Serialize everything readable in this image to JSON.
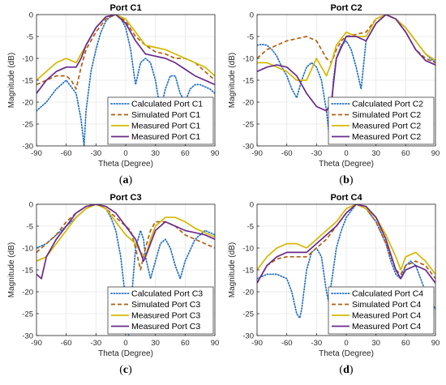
{
  "colors": {
    "calculated": "#1f6fc5",
    "simulated": "#b06010",
    "measured1": "#d4b800",
    "measured2": "#6a2a8c",
    "grid": "#e6e6e6",
    "axis": "#262626"
  },
  "chart_data": [
    {
      "type": "line",
      "label": "a",
      "title": "Port C1",
      "xlabel": "Theta (Degree)",
      "ylabel": "Magnitude (dB)",
      "xlim": [
        -90,
        90
      ],
      "ylim": [
        -30,
        0
      ],
      "xticks": [
        "-90",
        "-60",
        "-30",
        "0",
        "30",
        "60",
        "90"
      ],
      "yticks": [
        "0",
        "-5",
        "-10",
        "-15",
        "-20",
        "-25",
        "-30"
      ],
      "grid": true,
      "legend_position": "bottom-right",
      "series": [
        {
          "name": "Calculated Port C1",
          "style": "dotted",
          "color_key": "calculated",
          "x": [
            -90,
            -80,
            -70,
            -60,
            -50,
            -45,
            -42,
            -40,
            -35,
            -30,
            -25,
            -20,
            -15,
            -10,
            -5,
            0,
            5,
            8,
            10,
            12,
            15,
            20,
            25,
            30,
            35,
            40,
            45,
            50,
            55,
            60,
            65,
            70,
            75,
            80,
            85,
            90
          ],
          "y": [
            -22,
            -20,
            -17,
            -15,
            -18,
            -24,
            -30,
            -22,
            -13,
            -8,
            -4,
            -1.5,
            -0.3,
            0,
            -0.8,
            -3,
            -8,
            -13,
            -16,
            -14,
            -11,
            -10,
            -11,
            -15,
            -22,
            -17,
            -14,
            -14,
            -18,
            -20,
            -17,
            -16,
            -16,
            -16.5,
            -17,
            -18
          ]
        },
        {
          "name": "Simulated Port C1",
          "style": "dashed",
          "color_key": "simulated",
          "x": [
            -90,
            -80,
            -70,
            -60,
            -55,
            -50,
            -45,
            -40,
            -30,
            -20,
            -10,
            0,
            10,
            20,
            30,
            40,
            50,
            60,
            70,
            80,
            90
          ],
          "y": [
            -16,
            -15,
            -14,
            -14,
            -15,
            -17,
            -12,
            -8,
            -4,
            -1,
            0,
            -1.5,
            -5,
            -7,
            -8.5,
            -9,
            -10,
            -10,
            -11,
            -13,
            -15
          ]
        },
        {
          "name": "Measured Port C1",
          "style": "solid",
          "color_key": "measured1",
          "x": [
            -90,
            -80,
            -70,
            -60,
            -50,
            -40,
            -30,
            -20,
            -10,
            0,
            10,
            20,
            30,
            40,
            50,
            60,
            70,
            80,
            90
          ],
          "y": [
            -15,
            -13,
            -11,
            -10,
            -11,
            -7,
            -3,
            -0.5,
            0,
            -1,
            -4,
            -7,
            -7.5,
            -8,
            -9,
            -10,
            -11,
            -12,
            -14
          ]
        },
        {
          "name": "Measured Port C1",
          "style": "solid",
          "color_key": "measured2",
          "x": [
            -90,
            -80,
            -70,
            -60,
            -50,
            -45,
            -40,
            -30,
            -20,
            -10,
            0,
            10,
            20,
            30,
            40,
            50,
            60,
            70,
            80,
            90
          ],
          "y": [
            -18,
            -15,
            -13,
            -12,
            -12,
            -10,
            -7,
            -3,
            -0.5,
            0,
            -2,
            -6,
            -9,
            -9.5,
            -10,
            -11,
            -12.5,
            -14,
            -15,
            -16
          ]
        }
      ]
    },
    {
      "type": "line",
      "label": "b",
      "title": "Port C2",
      "xlabel": "Theta (Degree)",
      "ylabel": "Magnitude (dB)",
      "xlim": [
        -90,
        90
      ],
      "ylim": [
        -30,
        0
      ],
      "xticks": [
        "-90",
        "-60",
        "-30",
        "0",
        "30",
        "60",
        "90"
      ],
      "yticks": [
        "0",
        "-5",
        "-10",
        "-15",
        "-20",
        "-25",
        "-30"
      ],
      "grid": true,
      "legend_position": "bottom-right",
      "series": [
        {
          "name": "Calculated Port C2",
          "style": "dotted",
          "color_key": "calculated",
          "x": [
            -90,
            -85,
            -80,
            -75,
            -70,
            -65,
            -60,
            -55,
            -50,
            -45,
            -40,
            -35,
            -30,
            -25,
            -20,
            -17,
            -15,
            -13,
            -10,
            -5,
            0,
            5,
            10,
            15,
            20,
            30,
            40,
            50,
            60,
            70,
            80,
            90
          ],
          "y": [
            -7,
            -6.8,
            -7,
            -8,
            -9.5,
            -12,
            -14,
            -17,
            -19,
            -15,
            -12,
            -11,
            -12,
            -15,
            -22,
            -28,
            -22,
            -15,
            -10,
            -7,
            -6,
            -8,
            -12,
            -17,
            -6,
            -2,
            0,
            -1,
            -3,
            -6,
            -9,
            -11
          ]
        },
        {
          "name": "Simulated Port C2",
          "style": "dashed",
          "color_key": "simulated",
          "x": [
            -90,
            -80,
            -70,
            -60,
            -50,
            -40,
            -30,
            -20,
            -15,
            -10,
            -5,
            0,
            10,
            20,
            30,
            40,
            50,
            60,
            70,
            80,
            90
          ],
          "y": [
            -10,
            -8,
            -7,
            -6,
            -5.5,
            -5,
            -6,
            -10,
            -11,
            -8,
            -6,
            -5,
            -4.5,
            -4,
            -1,
            0,
            -1,
            -4,
            -8,
            -10,
            -11
          ]
        },
        {
          "name": "Measured Port C2",
          "style": "solid",
          "color_key": "measured1",
          "x": [
            -90,
            -80,
            -70,
            -60,
            -50,
            -40,
            -30,
            -20,
            -15,
            -10,
            0,
            10,
            20,
            30,
            40,
            50,
            60,
            70,
            80,
            90
          ],
          "y": [
            -11,
            -11,
            -12,
            -13,
            -15,
            -15,
            -10,
            -14,
            -11,
            -7,
            -4,
            -5,
            -5,
            -1,
            0,
            -1,
            -3,
            -6,
            -9,
            -10.5
          ]
        },
        {
          "name": "Measured Port C2",
          "style": "solid",
          "color_key": "measured2",
          "x": [
            -90,
            -80,
            -70,
            -60,
            -50,
            -40,
            -30,
            -20,
            -15,
            -10,
            0,
            10,
            20,
            30,
            40,
            50,
            60,
            70,
            80,
            90
          ],
          "y": [
            -13,
            -12,
            -11.5,
            -12,
            -14,
            -18,
            -21,
            -22,
            -20,
            -10,
            -5,
            -5,
            -6,
            -2,
            0,
            -1,
            -4,
            -8,
            -10.5,
            -11.5
          ]
        }
      ]
    },
    {
      "type": "line",
      "label": "c",
      "title": "Port C3",
      "xlabel": "Theta (Degree)",
      "ylabel": "Magnitude (dB)",
      "xlim": [
        -90,
        90
      ],
      "ylim": [
        -30,
        0
      ],
      "xticks": [
        "-90",
        "-60",
        "-30",
        "0",
        "30",
        "60",
        "90"
      ],
      "yticks": [
        "0",
        "-5",
        "-10",
        "-15",
        "-20",
        "-25",
        "-30"
      ],
      "grid": true,
      "legend_position": "bottom-right",
      "series": [
        {
          "name": "Calculated Port C3",
          "style": "dotted",
          "color_key": "calculated",
          "x": [
            -90,
            -80,
            -70,
            -60,
            -50,
            -40,
            -30,
            -20,
            -15,
            -10,
            -5,
            0,
            3,
            5,
            10,
            15,
            18,
            20,
            25,
            30,
            35,
            40,
            45,
            50,
            55,
            60,
            70,
            80,
            90
          ],
          "y": [
            -10,
            -9,
            -7,
            -5,
            -3,
            -1,
            0,
            -1,
            -3,
            -6,
            -12,
            -22,
            -30,
            -24,
            -10,
            -6,
            -8,
            -12,
            -17,
            -13,
            -9,
            -8,
            -10,
            -14,
            -17,
            -13,
            -8,
            -6,
            -7
          ]
        },
        {
          "name": "Simulated Port C3",
          "style": "dashed",
          "color_key": "simulated",
          "x": [
            -90,
            -80,
            -70,
            -60,
            -50,
            -40,
            -30,
            -20,
            -10,
            0,
            5,
            10,
            15,
            18,
            20,
            25,
            30,
            40,
            50,
            60,
            70,
            80,
            90
          ],
          "y": [
            -11,
            -9,
            -7,
            -4,
            -2,
            -0.5,
            0,
            -1,
            -3,
            -5,
            -6,
            -10,
            -15,
            -12,
            -10,
            -6,
            -4,
            -4,
            -5,
            -7,
            -8,
            -9,
            -10
          ]
        },
        {
          "name": "Measured Port C3",
          "style": "solid",
          "color_key": "measured1",
          "x": [
            -90,
            -80,
            -70,
            -60,
            -50,
            -40,
            -30,
            -20,
            -10,
            0,
            10,
            15,
            20,
            25,
            30,
            40,
            50,
            60,
            70,
            80,
            90
          ],
          "y": [
            -13,
            -12,
            -9,
            -6,
            -3,
            -1,
            0,
            -1,
            -4,
            -7,
            -9,
            -11,
            -12,
            -8,
            -5,
            -3,
            -3,
            -4,
            -5.5,
            -6.5,
            -7.5
          ]
        },
        {
          "name": "Measured Port C3",
          "style": "solid",
          "color_key": "measured2",
          "x": [
            -90,
            -85,
            -80,
            -70,
            -60,
            -50,
            -40,
            -30,
            -20,
            -10,
            0,
            10,
            15,
            18,
            20,
            25,
            30,
            40,
            50,
            60,
            70,
            80,
            90
          ],
          "y": [
            -16,
            -17,
            -12,
            -8,
            -5,
            -2,
            -0.5,
            0,
            -0.5,
            -2,
            -5,
            -8,
            -11,
            -13,
            -12,
            -9,
            -6,
            -4,
            -5,
            -6,
            -6.5,
            -7,
            -8
          ]
        }
      ]
    },
    {
      "type": "line",
      "label": "d",
      "title": "Port C4",
      "xlabel": "Theta (Degree)",
      "ylabel": "Magnitude (dB)",
      "xlim": [
        -90,
        90
      ],
      "ylim": [
        -30,
        0
      ],
      "xticks": [
        "-90",
        "-60",
        "-30",
        "0",
        "30",
        "60",
        "90"
      ],
      "yticks": [
        "0",
        "-5",
        "-10",
        "-15",
        "-20",
        "-25",
        "-30"
      ],
      "grid": true,
      "legend_position": "bottom-right",
      "series": [
        {
          "name": "Calculated Port C4",
          "style": "dotted",
          "color_key": "calculated",
          "x": [
            -90,
            -80,
            -70,
            -60,
            -55,
            -50,
            -47,
            -45,
            -40,
            -35,
            -30,
            -25,
            -20,
            -18,
            -15,
            -10,
            -5,
            0,
            10,
            20,
            30,
            40,
            45,
            50,
            55,
            60,
            65,
            70,
            75,
            80,
            85,
            90
          ],
          "y": [
            -17,
            -16,
            -16,
            -17,
            -20,
            -25,
            -26,
            -24,
            -15,
            -11,
            -10,
            -12,
            -20,
            -22,
            -18,
            -10,
            -6,
            -3,
            0,
            -1,
            -4,
            -9,
            -13,
            -16,
            -17,
            -14,
            -13,
            -14,
            -17,
            -20,
            -22,
            -24
          ]
        },
        {
          "name": "Simulated Port C4",
          "style": "dashed",
          "color_key": "simulated",
          "x": [
            -90,
            -80,
            -70,
            -60,
            -50,
            -40,
            -30,
            -20,
            -10,
            0,
            10,
            20,
            30,
            40,
            50,
            55,
            60,
            70,
            80,
            90
          ],
          "y": [
            -18,
            -14,
            -12.5,
            -12,
            -12,
            -12,
            -10,
            -8,
            -5,
            -2,
            0,
            -1,
            -4,
            -9,
            -15,
            -16,
            -14,
            -13,
            -14,
            -17
          ]
        },
        {
          "name": "Measured Port C4",
          "style": "solid",
          "color_key": "measured1",
          "x": [
            -90,
            -80,
            -70,
            -60,
            -50,
            -40,
            -30,
            -20,
            -10,
            0,
            10,
            20,
            30,
            40,
            50,
            55,
            60,
            70,
            80,
            90
          ],
          "y": [
            -15,
            -12,
            -10,
            -9,
            -9,
            -10,
            -8,
            -6,
            -4,
            -1,
            0,
            -1,
            -3,
            -7,
            -12,
            -15,
            -12,
            -11,
            -13,
            -16
          ]
        },
        {
          "name": "Measured Port C4",
          "style": "solid",
          "color_key": "measured2",
          "x": [
            -90,
            -80,
            -70,
            -60,
            -50,
            -40,
            -30,
            -20,
            -10,
            0,
            10,
            20,
            30,
            40,
            50,
            55,
            60,
            70,
            80,
            90
          ],
          "y": [
            -18,
            -14,
            -12,
            -11,
            -11,
            -11,
            -9,
            -7,
            -5,
            -2,
            0,
            -0.5,
            -3,
            -8,
            -15,
            -17,
            -15,
            -14,
            -15,
            -18
          ]
        }
      ]
    }
  ]
}
